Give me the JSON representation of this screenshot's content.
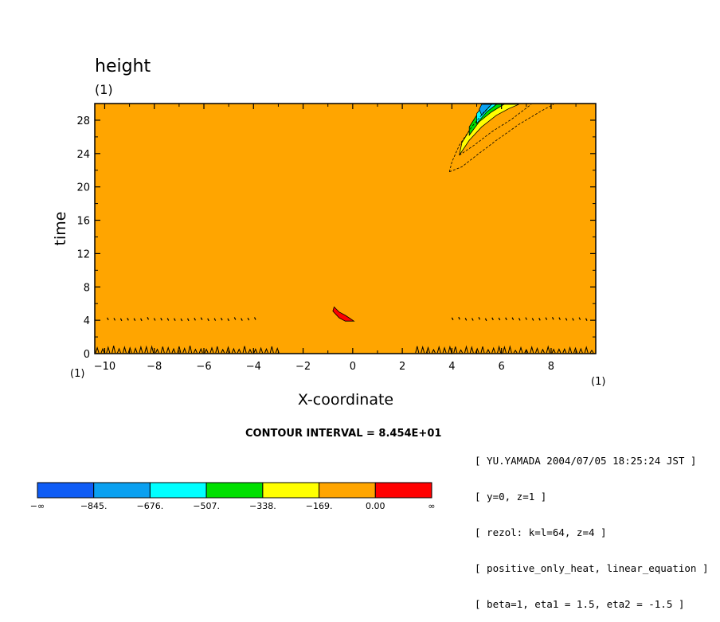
{
  "chart_data": {
    "type": "heatmap",
    "title": "height",
    "title_unit": "(1)",
    "xlabel": "X-coordinate",
    "ylabel": "time",
    "x_unit": "(1)",
    "y_unit": "(1)",
    "xlim": [
      -10.4,
      9.8
    ],
    "ylim": [
      0,
      30
    ],
    "x_ticks": [
      -10,
      -8,
      -6,
      -4,
      -2,
      0,
      2,
      4,
      6,
      8
    ],
    "y_ticks": [
      0,
      4,
      8,
      12,
      16,
      20,
      24,
      28
    ],
    "contour_interval": "CONTOUR INTERVAL = 8.454E+01",
    "background_color": "#ffa500",
    "levels": [
      {
        "label": "-∞",
        "color": "#0f5cf5"
      },
      {
        "label": "-845.",
        "color": "#0aa0f0"
      },
      {
        "label": "-676.",
        "color": "#00ffff"
      },
      {
        "label": "-507.",
        "color": "#00e000"
      },
      {
        "label": "-338.",
        "color": "#ffff00"
      },
      {
        "label": "-169.",
        "color": "#ffa500"
      },
      {
        "label": "0.00",
        "color": "#ff0000"
      },
      {
        "label": "∞",
        "color": null
      }
    ],
    "features": [
      {
        "name": "positive-blob",
        "color": "#ff0000",
        "points": [
          [
            -0.75,
            5.6
          ],
          [
            -0.55,
            5.0
          ],
          [
            -0.3,
            4.6
          ],
          [
            -0.1,
            4.2
          ],
          [
            0.05,
            3.9
          ],
          [
            -0.3,
            3.9
          ],
          [
            -0.55,
            4.3
          ],
          [
            -0.8,
            5.1
          ]
        ]
      },
      {
        "name": "wave-packet-yellow",
        "color": "#ffff00",
        "points": [
          [
            4.3,
            23.8
          ],
          [
            4.7,
            25.6
          ],
          [
            5.2,
            27.2
          ],
          [
            5.8,
            28.6
          ],
          [
            6.3,
            29.4
          ],
          [
            6.7,
            29.9
          ],
          [
            6.1,
            29.9
          ],
          [
            5.4,
            29.0
          ],
          [
            4.8,
            27.2
          ],
          [
            4.4,
            25.3
          ]
        ]
      },
      {
        "name": "wave-packet-green",
        "color": "#00e000",
        "points": [
          [
            4.7,
            26.2
          ],
          [
            5.1,
            27.8
          ],
          [
            5.6,
            29.0
          ],
          [
            6.1,
            29.9
          ],
          [
            5.5,
            29.9
          ],
          [
            5.0,
            28.6
          ],
          [
            4.7,
            27.2
          ]
        ]
      },
      {
        "name": "wave-packet-cyan",
        "color": "#00ffff",
        "points": [
          [
            5.0,
            27.6
          ],
          [
            5.4,
            29.0
          ],
          [
            5.8,
            29.9
          ],
          [
            5.3,
            29.9
          ],
          [
            5.0,
            28.8
          ]
        ]
      },
      {
        "name": "wave-packet-blue",
        "color": "#0aa0f0",
        "points": [
          [
            5.2,
            28.6
          ],
          [
            5.6,
            29.9
          ],
          [
            5.2,
            29.9
          ],
          [
            5.1,
            29.3
          ]
        ]
      }
    ],
    "dashed_contours": [
      {
        "name": "outer-contour",
        "points": [
          [
            3.9,
            21.8
          ],
          [
            4.4,
            22.4
          ],
          [
            5.0,
            23.8
          ],
          [
            5.8,
            25.6
          ],
          [
            6.7,
            27.5
          ],
          [
            7.6,
            29.1
          ],
          [
            8.1,
            29.9
          ]
        ]
      },
      {
        "name": "outer-contour-left",
        "points": [
          [
            3.9,
            21.8
          ],
          [
            4.0,
            23.0
          ],
          [
            4.3,
            25.0
          ],
          [
            4.8,
            27.2
          ],
          [
            5.3,
            29.0
          ],
          [
            5.6,
            29.9
          ]
        ]
      },
      {
        "name": "inner-contour",
        "points": [
          [
            4.3,
            23.8
          ],
          [
            4.9,
            25.0
          ],
          [
            5.6,
            26.6
          ],
          [
            6.4,
            28.1
          ],
          [
            7.2,
            29.9
          ]
        ]
      }
    ],
    "noise_rows": [
      {
        "y": 4.1,
        "x_ranges": [
          [
            -9.9,
            -3.8
          ],
          [
            4.0,
            9.6
          ]
        ]
      },
      {
        "y": 0.3,
        "x_ranges": [
          [
            -10.3,
            -3.0
          ],
          [
            2.6,
            9.7
          ]
        ]
      }
    ]
  },
  "info_lines": [
    "[ YU.YAMADA 2004/07/05 18:25:24 JST ]",
    "[ y=0, z=1 ]",
    "[ rezol: k=l=64, z=4 ]",
    "[ positive_only_heat, linear_equation ]",
    "[ beta=1, eta1 = 1.5, eta2 = -1.5 ]"
  ]
}
